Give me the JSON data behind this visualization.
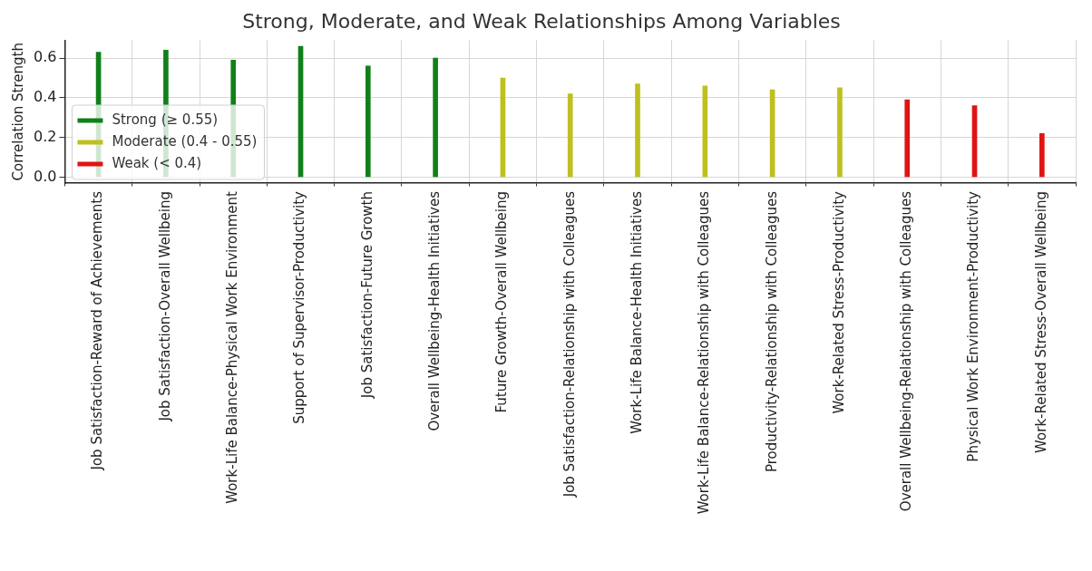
{
  "chart_data": {
    "type": "bar",
    "title": "Strong, Moderate, and Weak Relationships Among Variables",
    "ylabel": "Correlation Strength",
    "categories": [
      "Job Satisfaction-Reward of Achievements",
      "Job Satisfaction-Overall Wellbeing",
      "Work-Life Balance-Physical Work Environment",
      "Support of Supervisor-Productivity",
      "Job Satisfaction-Future Growth",
      "Overall Wellbeing-Health Initiatives",
      "Future Growth-Overall Wellbeing",
      "Job Satisfaction-Relationship with Colleagues",
      "Work-Life Balance-Health Initiatives",
      "Work-Life Balance-Relationship with Colleagues",
      "Productivity-Relationship with Colleagues",
      "Work-Related Stress-Productivity",
      "Overall Wellbeing-Relationship with Colleagues",
      "Physical Work Environment-Productivity",
      "Work-Related Stress-Overall Wellbeing"
    ],
    "series": [
      {
        "name": "Strong (≥ 0.55)",
        "color": "#11801a",
        "values": [
          0.63,
          0.64,
          0.59,
          0.66,
          0.56,
          0.6,
          null,
          null,
          null,
          null,
          null,
          null,
          null,
          null,
          null
        ]
      },
      {
        "name": "Moderate (0.4 - 0.55)",
        "color": "#bfbf1f",
        "values": [
          null,
          null,
          null,
          null,
          null,
          null,
          0.5,
          0.42,
          0.47,
          0.46,
          0.44,
          0.45,
          null,
          null,
          null
        ]
      },
      {
        "name": "Weak (< 0.4)",
        "color": "#e01414",
        "values": [
          null,
          null,
          null,
          null,
          null,
          null,
          null,
          null,
          null,
          null,
          null,
          null,
          0.39,
          0.36,
          0.22
        ]
      }
    ],
    "ylim": [
      -0.03,
      0.69
    ],
    "yticks": [
      {
        "value": 0,
        "label": "0.0"
      },
      {
        "value": 0.2,
        "label": "0.2"
      },
      {
        "value": 0.4,
        "label": "0.4"
      },
      {
        "value": 0.6,
        "label": "0.6"
      }
    ],
    "grid": true,
    "legend": "bottom left"
  }
}
